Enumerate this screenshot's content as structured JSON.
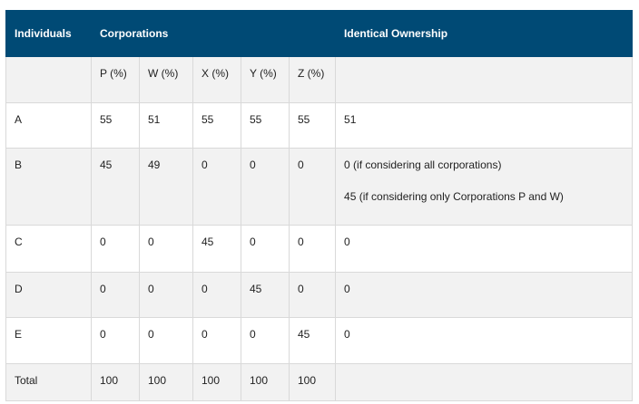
{
  "header": {
    "individuals": "Individuals",
    "corporations": "Corporations",
    "identical": "Identical Ownership"
  },
  "subheader": [
    "P (%)",
    "W (%)",
    "X (%)",
    "Y (%)",
    "Z (%)"
  ],
  "rows": [
    {
      "name": "A",
      "values": [
        "55",
        "51",
        "55",
        "55",
        "55"
      ],
      "identical": "51",
      "identical2": ""
    },
    {
      "name": "B",
      "values": [
        "45",
        "49",
        "0",
        "0",
        "0"
      ],
      "identical": "0 (if considering all corporations)",
      "identical2": "45 (if considering only Corporations P and W)"
    },
    {
      "name": "C",
      "values": [
        "0",
        "0",
        "45",
        "0",
        "0"
      ],
      "identical": "0",
      "identical2": ""
    },
    {
      "name": "D",
      "values": [
        "0",
        "0",
        "0",
        "45",
        "0"
      ],
      "identical": "0",
      "identical2": ""
    },
    {
      "name": "E",
      "values": [
        "0",
        "0",
        "0",
        "0",
        "45"
      ],
      "identical": "0",
      "identical2": ""
    },
    {
      "name": "Total",
      "values": [
        "100",
        "100",
        "100",
        "100",
        "100"
      ],
      "identical": "",
      "identical2": ""
    }
  ]
}
